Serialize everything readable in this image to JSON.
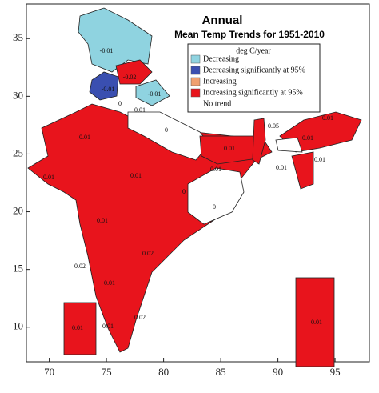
{
  "map": {
    "title": "Annual",
    "subtitle": "Mean Temp Trends for 1951-2010",
    "legend": {
      "title": "deg C/year",
      "entries": [
        {
          "name": "Decreasing",
          "color": "#8fd3e0"
        },
        {
          "name": "Decreasing significantly at 95%",
          "color": "#3a4fb0"
        },
        {
          "name": "Increasing",
          "color": "#f0a070"
        },
        {
          "name": "Increasing significantly at 95%",
          "color": "#e8141c"
        },
        {
          "name": "No trend",
          "color": "#ffffff"
        }
      ]
    },
    "xlim": [
      68,
      98
    ],
    "xticks": [
      70,
      75,
      80,
      85,
      90,
      95
    ],
    "ylim": [
      7,
      38
    ],
    "yticks": [
      10,
      15,
      20,
      25,
      30,
      35
    ],
    "region_labels": [
      -0.01,
      -0.02,
      -0.01,
      -0.01,
      0,
      0.01,
      0,
      0.05,
      0.01,
      0.01,
      0.01,
      0.01,
      0.01,
      0.01,
      0.01,
      0.01,
      0.01,
      0,
      0,
      0.01,
      0.02,
      0.02,
      0.01,
      0.02,
      0.01,
      0.01,
      0.01
    ]
  }
}
